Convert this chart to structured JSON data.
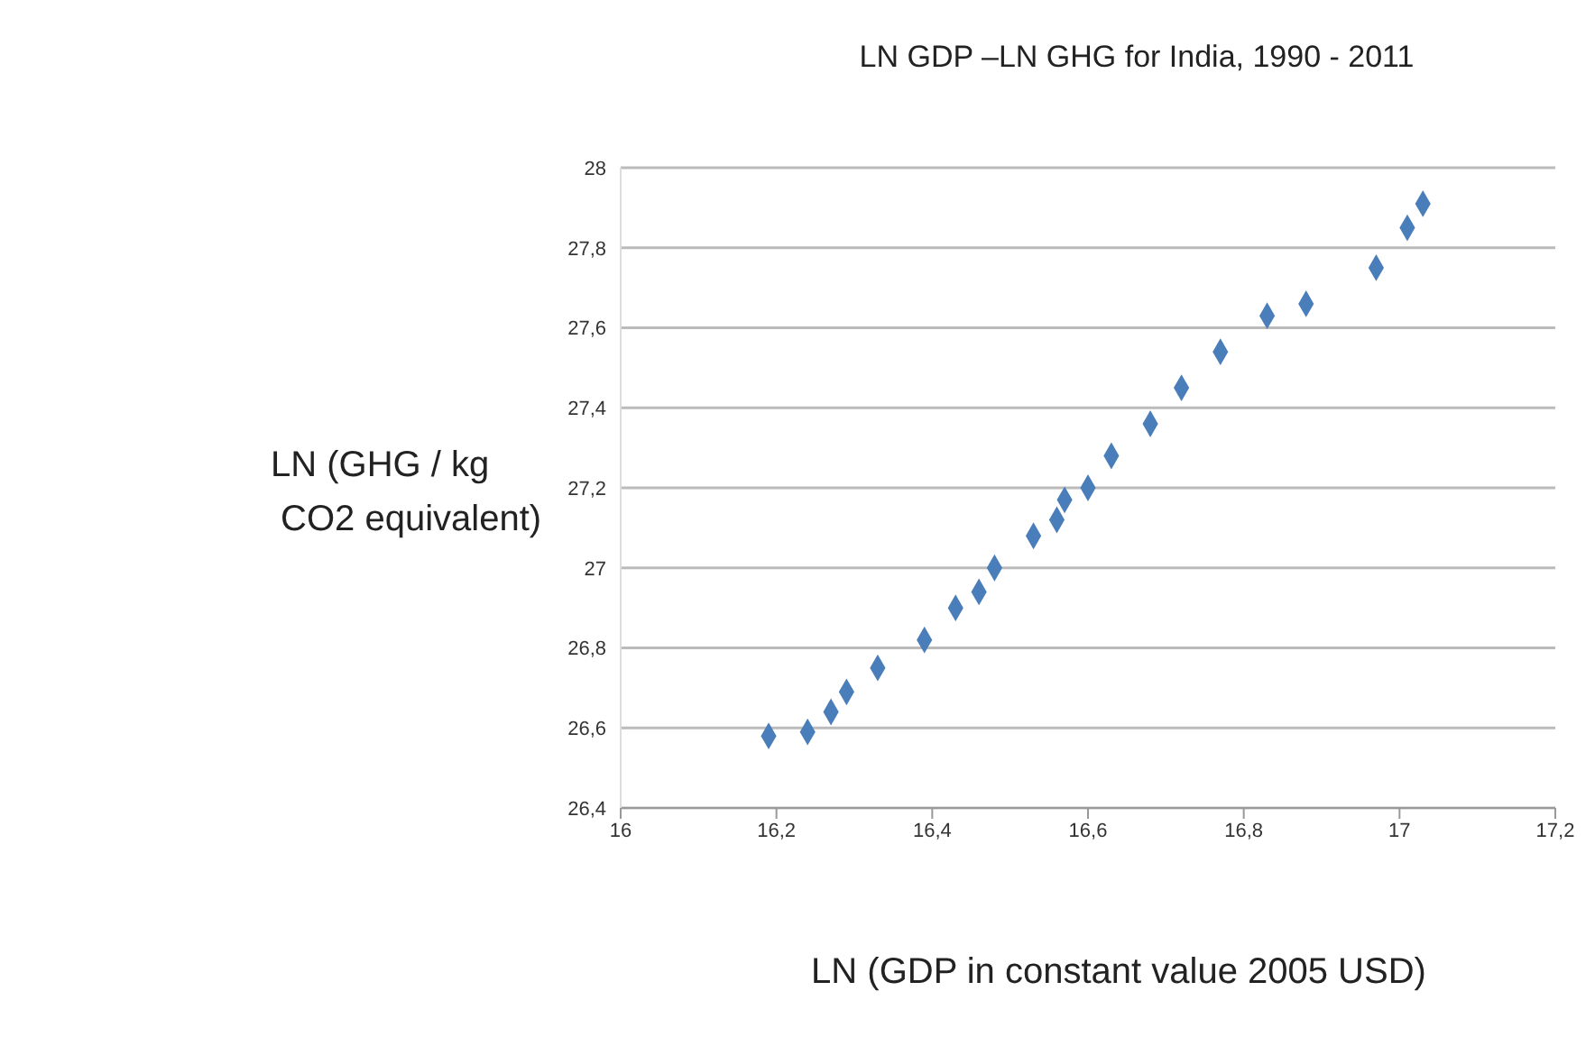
{
  "chart_data": {
    "type": "scatter",
    "title": "LN GDP –LN GHG for India, 1990 - 2011",
    "xlabel": "LN (GDP in constant value 2005 USD)",
    "ylabel": "LN (GHG / kg\n CO2 equivalent)",
    "x": [
      16.19,
      16.24,
      16.27,
      16.29,
      16.33,
      16.39,
      16.43,
      16.46,
      16.48,
      16.53,
      16.56,
      16.57,
      16.6,
      16.63,
      16.68,
      16.72,
      16.77,
      16.83,
      16.88,
      16.97,
      17.01,
      17.03
    ],
    "series": [
      {
        "color": "#4a7ebb",
        "values": [
          26.58,
          26.59,
          26.64,
          26.69,
          26.75,
          26.82,
          26.9,
          26.94,
          27.0,
          27.08,
          27.12,
          27.17,
          27.2,
          27.28,
          27.36,
          27.45,
          27.54,
          27.63,
          27.66,
          27.75,
          27.85,
          27.91
        ]
      }
    ],
    "xlim": [
      16,
      17.2
    ],
    "xticks": [
      16,
      {
        "value": 16.2,
        "label": "16,2"
      },
      {
        "value": 16.4,
        "label": "16,4"
      },
      {
        "value": 16.6,
        "label": "16,6"
      },
      {
        "value": 16.8,
        "label": "16,8"
      },
      17,
      {
        "value": 17.2,
        "label": "17,2"
      }
    ],
    "ylim": [
      26.4,
      28
    ],
    "yticks": [
      {
        "value": 26.4,
        "label": "26,4"
      },
      {
        "value": 26.6,
        "label": "26,6"
      },
      {
        "value": 26.8,
        "label": "26,8"
      },
      27,
      {
        "value": 27.2,
        "label": "27,2"
      },
      {
        "value": 27.4,
        "label": "27,4"
      },
      {
        "value": 27.6,
        "label": "27,6"
      },
      {
        "value": 27.8,
        "label": "27,8"
      },
      28
    ],
    "grid": "y",
    "marker": "diamond",
    "legend": false
  }
}
